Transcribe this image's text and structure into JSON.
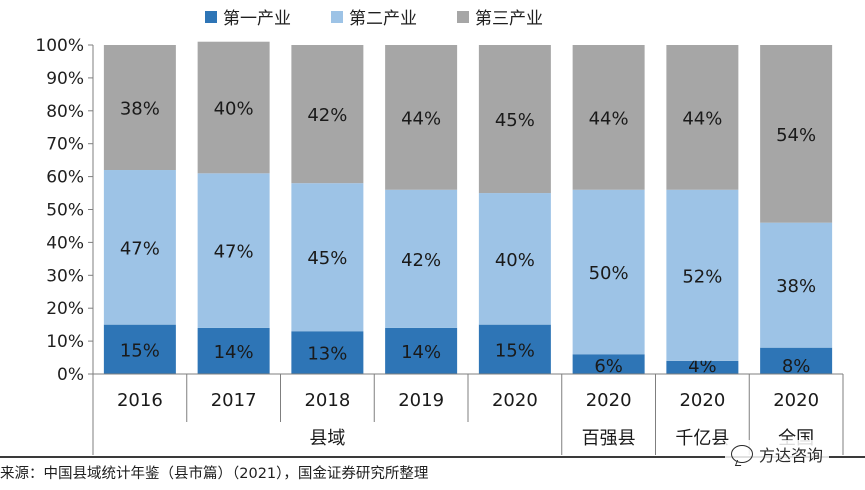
{
  "chart_data": {
    "type": "bar",
    "stacked": true,
    "categories": [
      "2016",
      "2017",
      "2018",
      "2019",
      "2020",
      "2020",
      "2020",
      "2020"
    ],
    "groups": [
      {
        "label": "县域",
        "span": [
          0,
          4
        ]
      },
      {
        "label": "百强县",
        "span": [
          5,
          5
        ]
      },
      {
        "label": "千亿县",
        "span": [
          6,
          6
        ]
      },
      {
        "label": "全国",
        "span": [
          7,
          7
        ]
      }
    ],
    "series": [
      {
        "name": "第一产业",
        "color": "#2E75B6",
        "values": [
          15,
          14,
          13,
          14,
          15,
          6,
          4,
          8
        ],
        "labels": [
          "15%",
          "14%",
          "13%",
          "14%",
          "15%",
          "6%",
          "4%",
          "8%"
        ]
      },
      {
        "name": "第二产业",
        "color": "#9DC3E6",
        "values": [
          47,
          47,
          45,
          42,
          40,
          50,
          52,
          38
        ],
        "labels": [
          "47%",
          "47%",
          "45%",
          "42%",
          "40%",
          "50%",
          "52%",
          "38%"
        ]
      },
      {
        "name": "第三产业",
        "color": "#A6A6A6",
        "values": [
          38,
          40,
          42,
          44,
          45,
          44,
          44,
          54
        ],
        "labels": [
          "38%",
          "40%",
          "42%",
          "44%",
          "45%",
          "44%",
          "44%",
          "54%"
        ]
      }
    ],
    "ylim": [
      0,
      100
    ],
    "yticks": [
      "0%",
      "10%",
      "20%",
      "30%",
      "40%",
      "50%",
      "60%",
      "70%",
      "80%",
      "90%",
      "100%"
    ],
    "legend_position": "top",
    "grid": false
  },
  "legend": {
    "items": [
      {
        "label": "第一产业",
        "color": "#2E75B6"
      },
      {
        "label": "第二产业",
        "color": "#9DC3E6"
      },
      {
        "label": "第三产业",
        "color": "#A6A6A6"
      }
    ]
  },
  "footnote": "来源：中国县域统计年鉴（县市篇）（2021），国金证券研究所整理",
  "watermark": "方达咨询"
}
